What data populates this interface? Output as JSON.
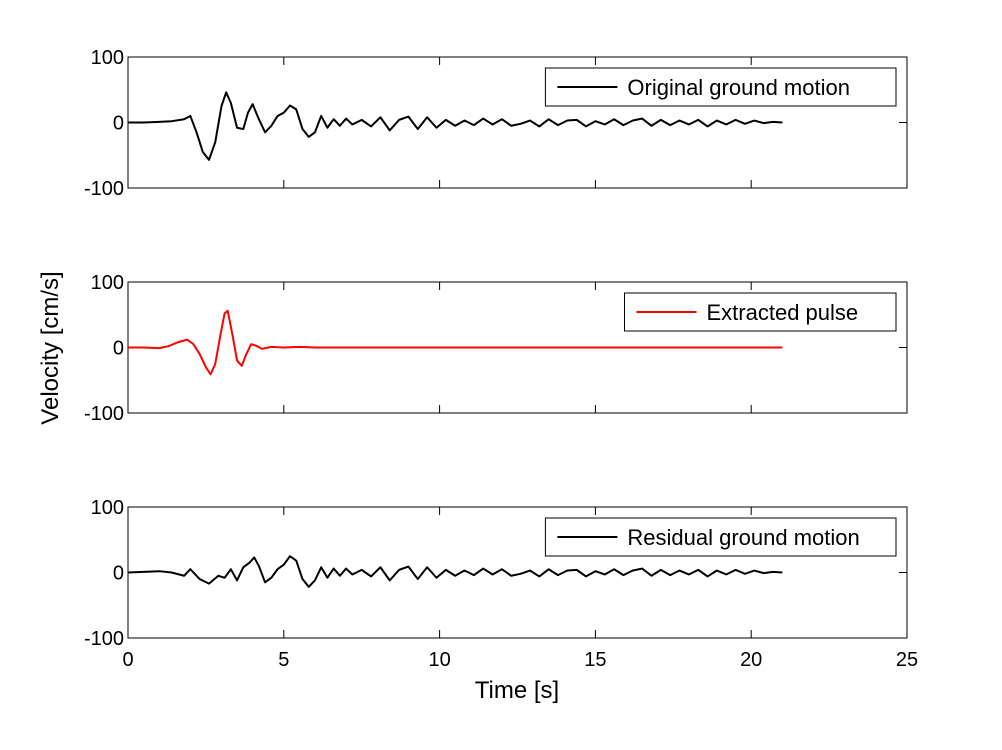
{
  "chart_data": {
    "type": "line",
    "xlabel": "Time [s]",
    "ylabel": "Velocity [cm/s]",
    "xlim": [
      0,
      25
    ],
    "xticks": [
      0,
      5,
      10,
      15,
      20,
      25
    ],
    "yticks": [
      -100,
      0,
      100
    ],
    "grid": false,
    "panels": [
      {
        "ylim": [
          -100,
          100
        ],
        "legend": {
          "label": "Original ground motion",
          "position": "top-right"
        },
        "series": [
          {
            "name": "Original ground motion",
            "color": "#000000",
            "x": [
              0,
              0.5,
              1.0,
              1.4,
              1.8,
              2.0,
              2.2,
              2.4,
              2.6,
              2.8,
              3.0,
              3.15,
              3.3,
              3.5,
              3.7,
              3.85,
              4.0,
              4.2,
              4.4,
              4.6,
              4.8,
              5.0,
              5.2,
              5.4,
              5.6,
              5.8,
              6.0,
              6.2,
              6.4,
              6.6,
              6.8,
              7.0,
              7.2,
              7.5,
              7.8,
              8.1,
              8.4,
              8.7,
              9.0,
              9.3,
              9.6,
              9.9,
              10.2,
              10.5,
              10.8,
              11.1,
              11.4,
              11.7,
              12.0,
              12.3,
              12.6,
              12.9,
              13.2,
              13.5,
              13.8,
              14.1,
              14.4,
              14.7,
              15.0,
              15.3,
              15.6,
              15.9,
              16.2,
              16.5,
              16.8,
              17.1,
              17.4,
              17.7,
              18.0,
              18.3,
              18.6,
              18.9,
              19.2,
              19.5,
              19.8,
              20.1,
              20.4,
              20.7,
              21.0
            ],
            "y": [
              0,
              0,
              1,
              2,
              5,
              10,
              -15,
              -45,
              -57,
              -30,
              25,
              46,
              30,
              -8,
              -10,
              15,
              28,
              5,
              -15,
              -5,
              10,
              15,
              26,
              20,
              -10,
              -22,
              -15,
              10,
              -8,
              5,
              -5,
              6,
              -3,
              4,
              -6,
              8,
              -12,
              4,
              9,
              -10,
              8,
              -8,
              4,
              -5,
              3,
              -4,
              6,
              -3,
              5,
              -5,
              -2,
              3,
              -6,
              5,
              -4,
              3,
              4,
              -6,
              2,
              -3,
              5,
              -4,
              3,
              6,
              -5,
              4,
              -4,
              3,
              -3,
              4,
              -6,
              3,
              -3,
              4,
              -2,
              3,
              -1,
              1,
              0
            ]
          }
        ]
      },
      {
        "ylim": [
          -100,
          100
        ],
        "legend": {
          "label": "Extracted pulse",
          "position": "top-right"
        },
        "series": [
          {
            "name": "Extracted pulse",
            "color": "#ff0000",
            "x": [
              0,
              0.5,
              1.0,
              1.3,
              1.6,
              1.9,
              2.1,
              2.3,
              2.5,
              2.65,
              2.8,
              2.95,
              3.1,
              3.2,
              3.35,
              3.5,
              3.65,
              3.8,
              3.95,
              4.1,
              4.3,
              4.6,
              5.0,
              5.5,
              6.0,
              8.0,
              12.0,
              16.0,
              21.0
            ],
            "y": [
              0,
              0,
              -1,
              2,
              8,
              12,
              5,
              -10,
              -30,
              -41,
              -25,
              15,
              52,
              56,
              20,
              -20,
              -28,
              -10,
              5,
              3,
              -2,
              1,
              0,
              1,
              0,
              0,
              0,
              0,
              0
            ]
          }
        ]
      },
      {
        "ylim": [
          -100,
          100
        ],
        "legend": {
          "label": "Residual ground motion",
          "position": "top-right"
        },
        "series": [
          {
            "name": "Residual ground motion",
            "color": "#000000",
            "x": [
              0,
              0.5,
              1.0,
              1.4,
              1.8,
              2.0,
              2.3,
              2.6,
              2.9,
              3.1,
              3.3,
              3.5,
              3.7,
              3.9,
              4.05,
              4.2,
              4.4,
              4.6,
              4.8,
              5.0,
              5.2,
              5.4,
              5.6,
              5.8,
              6.0,
              6.2,
              6.4,
              6.6,
              6.8,
              7.0,
              7.2,
              7.5,
              7.8,
              8.1,
              8.4,
              8.7,
              9.0,
              9.3,
              9.6,
              9.9,
              10.2,
              10.5,
              10.8,
              11.1,
              11.4,
              11.7,
              12.0,
              12.3,
              12.6,
              12.9,
              13.2,
              13.5,
              13.8,
              14.1,
              14.4,
              14.7,
              15.0,
              15.3,
              15.6,
              15.9,
              16.2,
              16.5,
              16.8,
              17.1,
              17.4,
              17.7,
              18.0,
              18.3,
              18.6,
              18.9,
              19.2,
              19.5,
              19.8,
              20.1,
              20.4,
              20.7,
              21.0
            ],
            "y": [
              0,
              1,
              2,
              0,
              -5,
              5,
              -10,
              -17,
              -5,
              -8,
              5,
              -12,
              8,
              15,
              23,
              10,
              -15,
              -8,
              5,
              12,
              25,
              18,
              -10,
              -22,
              -12,
              8,
              -8,
              6,
              -5,
              6,
              -3,
              4,
              -6,
              8,
              -12,
              4,
              9,
              -10,
              8,
              -8,
              4,
              -5,
              3,
              -4,
              6,
              -3,
              5,
              -5,
              -2,
              3,
              -6,
              5,
              -4,
              3,
              4,
              -6,
              2,
              -3,
              5,
              -4,
              3,
              6,
              -5,
              4,
              -4,
              3,
              -3,
              4,
              -6,
              3,
              -3,
              4,
              -2,
              3,
              -1,
              1,
              0
            ]
          }
        ]
      }
    ]
  }
}
